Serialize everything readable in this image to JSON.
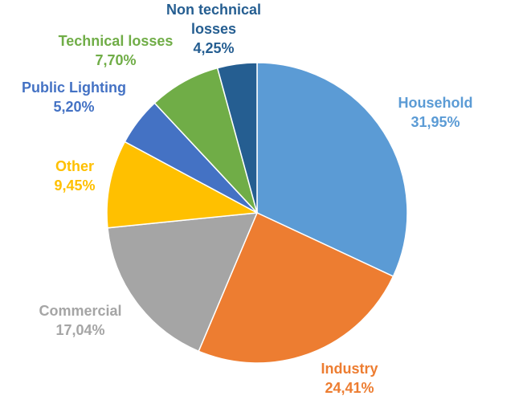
{
  "chart_data": {
    "type": "pie",
    "title": "",
    "start_angle_deg": 0,
    "direction": "clockwise",
    "slices": [
      {
        "label": "Household",
        "value_text": "31,95%",
        "value": 31.95,
        "color": "#5B9BD5"
      },
      {
        "label": "Industry",
        "value_text": "24,41%",
        "value": 24.41,
        "color": "#ED7D31"
      },
      {
        "label": "Commercial",
        "value_text": "17,04%",
        "value": 17.04,
        "color": "#A5A5A5"
      },
      {
        "label": "Other",
        "value_text": "9,45%",
        "value": 9.45,
        "color": "#FFC000"
      },
      {
        "label": "Public Lighting",
        "value_text": "5,20%",
        "value": 5.2,
        "color": "#4472C4"
      },
      {
        "label": "Technical losses",
        "value_text": "7,70%",
        "value": 7.7,
        "color": "#70AD47"
      },
      {
        "label": "Non technical\nlosses",
        "value_text": "4,25%",
        "value": 4.25,
        "color": "#255E91"
      }
    ],
    "legend": "none",
    "data_labels": "outside"
  }
}
